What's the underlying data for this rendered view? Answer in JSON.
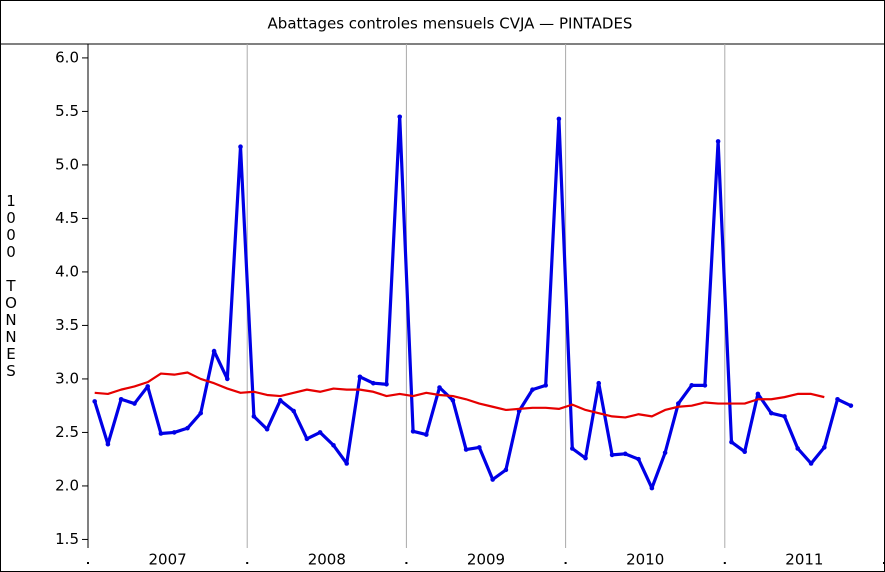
{
  "chart_data": {
    "type": "line",
    "title": "Abattages controles mensuels CVJA — PINTADES",
    "ylabel": "1000 TONNES",
    "x": [
      2007.042,
      2007.125,
      2007.208,
      2007.292,
      2007.375,
      2007.458,
      2007.542,
      2007.625,
      2007.708,
      2007.792,
      2007.875,
      2007.958,
      2008.042,
      2008.125,
      2008.208,
      2008.292,
      2008.375,
      2008.458,
      2008.542,
      2008.625,
      2008.708,
      2008.792,
      2008.875,
      2008.958,
      2009.042,
      2009.125,
      2009.208,
      2009.292,
      2009.375,
      2009.458,
      2009.542,
      2009.625,
      2009.708,
      2009.792,
      2009.875,
      2009.958,
      2010.042,
      2010.125,
      2010.208,
      2010.292,
      2010.375,
      2010.458,
      2010.542,
      2010.625,
      2010.708,
      2010.792,
      2010.875,
      2010.958,
      2011.042,
      2011.125,
      2011.208,
      2011.292,
      2011.375,
      2011.458,
      2011.542,
      2011.625,
      2011.708,
      2011.792
    ],
    "series": [
      {
        "color": "#0000e6",
        "markers": true,
        "values": [
          2.79,
          2.39,
          2.81,
          2.77,
          2.93,
          2.49,
          2.5,
          2.54,
          2.68,
          3.26,
          3.0,
          5.17,
          2.65,
          2.53,
          2.8,
          2.7,
          2.44,
          2.5,
          2.38,
          2.21,
          3.02,
          2.96,
          2.95,
          5.45,
          2.51,
          2.48,
          2.92,
          2.8,
          2.34,
          2.36,
          2.06,
          2.15,
          2.7,
          2.9,
          2.94,
          5.43,
          2.35,
          2.26,
          2.96,
          2.29,
          2.3,
          2.25,
          1.98,
          2.31,
          2.77,
          2.94,
          2.94,
          5.22,
          2.41,
          2.32,
          2.86,
          2.68,
          2.65,
          2.35,
          2.21,
          2.36,
          2.81,
          2.75
        ]
      },
      {
        "color": "#e60000",
        "markers": false,
        "values": [
          2.87,
          2.86,
          2.9,
          2.93,
          2.97,
          3.05,
          3.04,
          3.06,
          3.0,
          2.96,
          2.91,
          2.87,
          2.88,
          2.85,
          2.84,
          2.87,
          2.9,
          2.88,
          2.91,
          2.9,
          2.9,
          2.88,
          2.84,
          2.86,
          2.84,
          2.87,
          2.85,
          2.84,
          2.81,
          2.77,
          2.74,
          2.71,
          2.72,
          2.73,
          2.73,
          2.72,
          2.76,
          2.71,
          2.68,
          2.65,
          2.64,
          2.67,
          2.65,
          2.71,
          2.74,
          2.75,
          2.78,
          2.77,
          2.77,
          2.77,
          2.81,
          2.81,
          2.83,
          2.86,
          2.86,
          2.83,
          null,
          null
        ]
      }
    ],
    "xlim": [
      2007,
      2012
    ],
    "xticks": [
      2007,
      2008,
      2009,
      2010,
      2011,
      2012
    ],
    "xlabels": [
      {
        "value": 2007.5,
        "label": "2007"
      },
      {
        "value": 2008.5,
        "label": "2008"
      },
      {
        "value": 2009.5,
        "label": "2009"
      },
      {
        "value": 2010.5,
        "label": "2010"
      },
      {
        "value": 2011.5,
        "label": "2011"
      }
    ],
    "ylim": [
      1.42,
      6.13
    ],
    "yticks": [
      1.5,
      {
        "value": 2,
        "label": "2.0"
      },
      2.5,
      {
        "value": 3,
        "label": "3.0"
      },
      3.5,
      {
        "value": 4,
        "label": "4.0"
      },
      4.5,
      {
        "value": 5,
        "label": "5.0"
      },
      5.5,
      {
        "value": 6,
        "label": "6.0"
      }
    ],
    "xgrid": true
  }
}
